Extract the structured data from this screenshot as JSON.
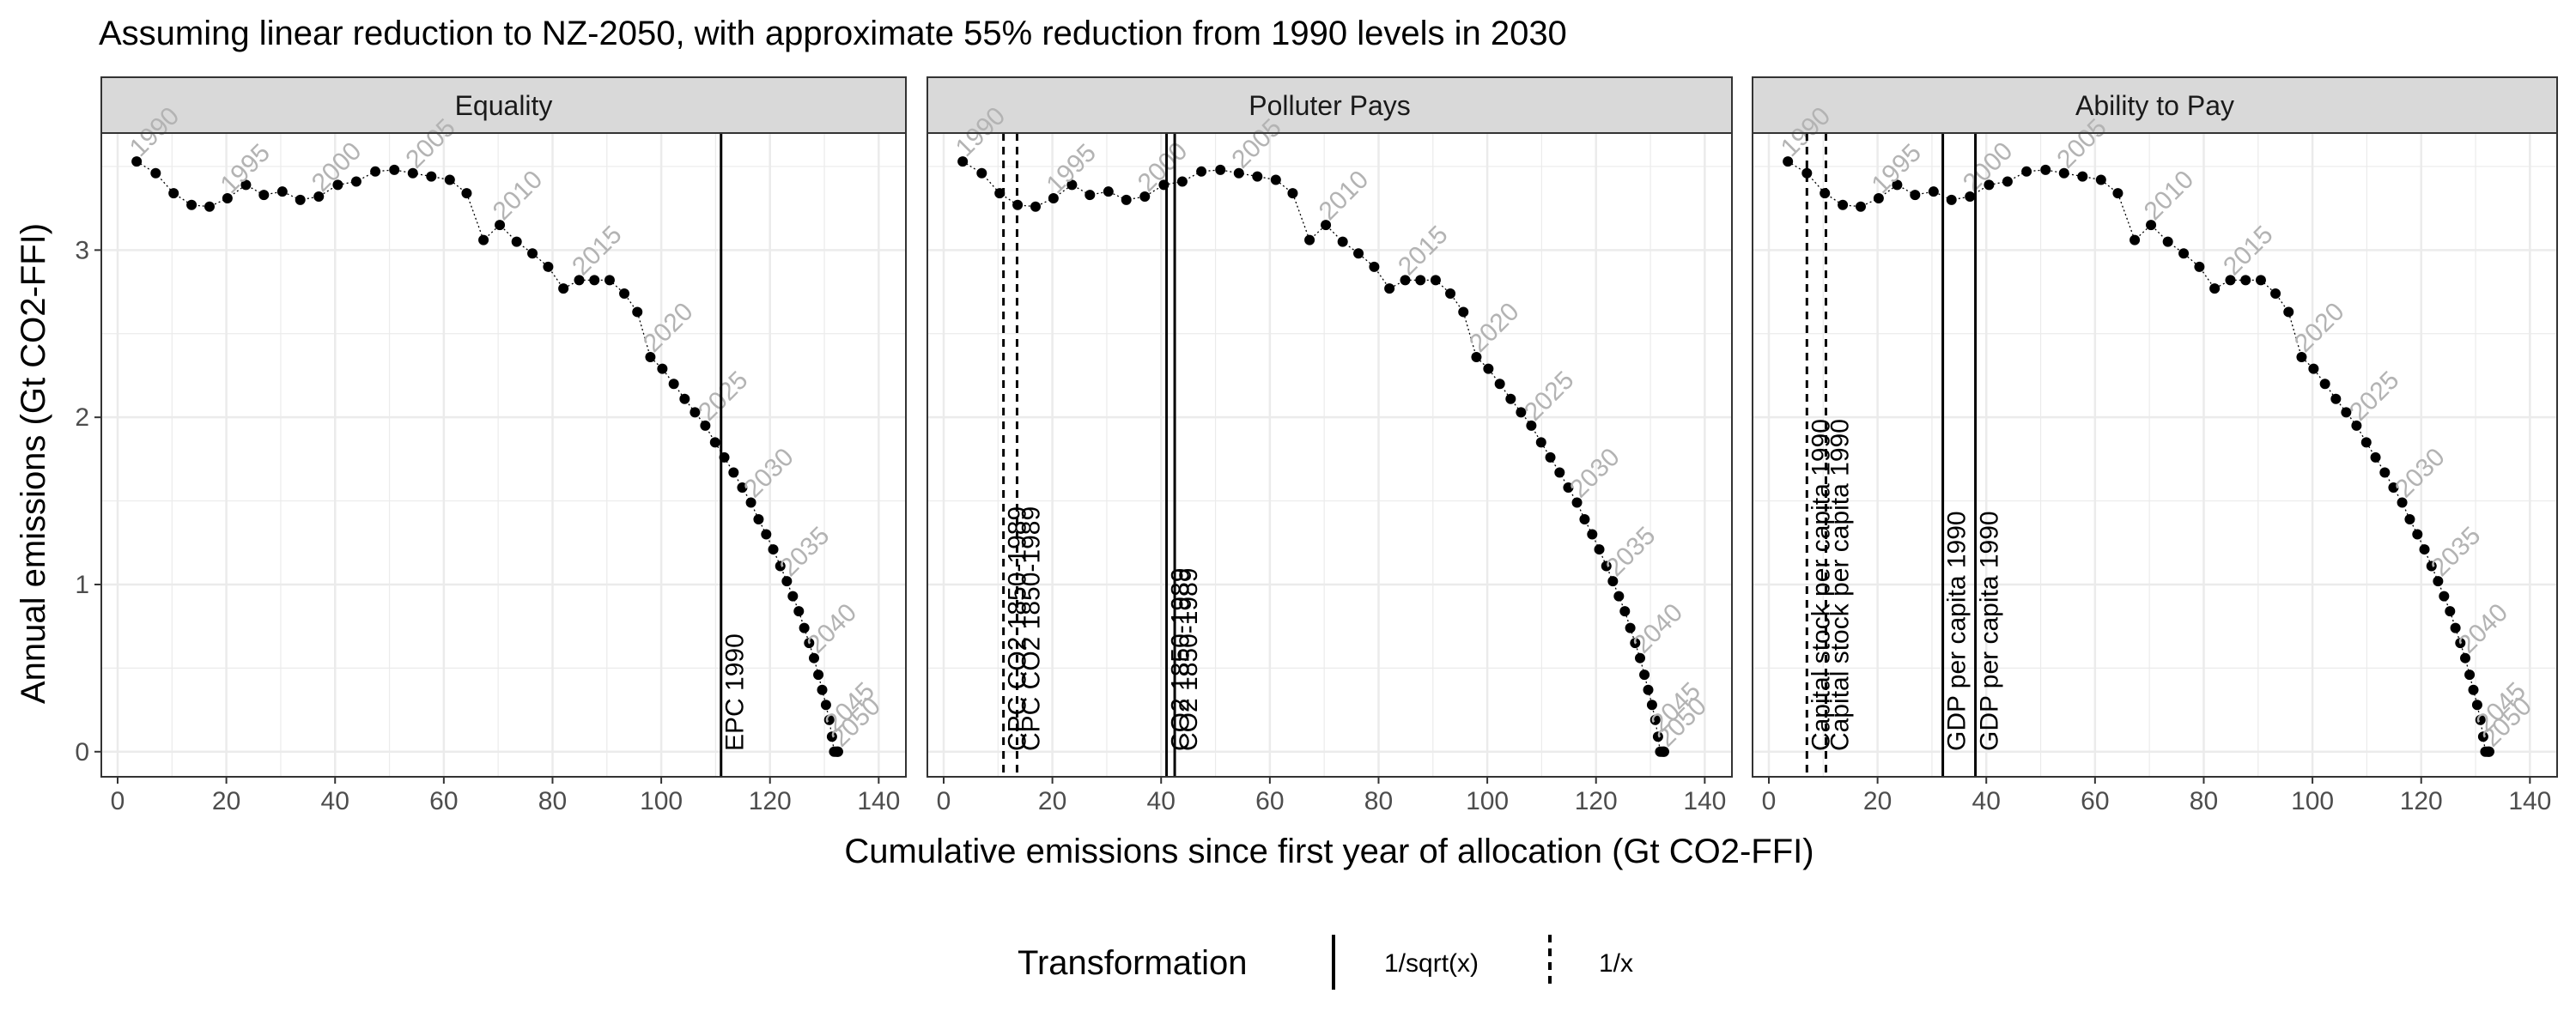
{
  "chart_data": {
    "type": "scatter",
    "title": "Assuming linear reduction to NZ-2050, with approximate 55% reduction from 1990 levels in 2030",
    "xlabel": "Cumulative emissions since first year of allocation (Gt CO2-FFI)",
    "ylabel": "Annual emissions (Gt CO2-FFI)",
    "xlim": [
      -3,
      145
    ],
    "ylim": [
      -0.15,
      3.7
    ],
    "x_ticks": [
      0,
      20,
      40,
      60,
      80,
      100,
      120,
      140
    ],
    "y_ticks": [
      0,
      1,
      2,
      3
    ],
    "grid": true,
    "facets": [
      "Equality",
      "Polluter Pays",
      "Ability to Pay"
    ],
    "year_labels": [
      "1990",
      "1995",
      "2000",
      "2005",
      "2010",
      "2015",
      "2020",
      "2025",
      "2030",
      "2035",
      "2040",
      "2045",
      "2050"
    ],
    "series": [
      {
        "name": "emissions",
        "years": [
          1990,
          1991,
          1992,
          1993,
          1994,
          1995,
          1996,
          1997,
          1998,
          1999,
          2000,
          2001,
          2002,
          2003,
          2004,
          2005,
          2006,
          2007,
          2008,
          2009,
          2010,
          2011,
          2012,
          2013,
          2014,
          2015,
          2016,
          2017,
          2018,
          2019,
          2020,
          2021,
          2022,
          2023,
          2024,
          2025,
          2026,
          2027,
          2028,
          2029,
          2030,
          2031,
          2032,
          2033,
          2034,
          2035,
          2036,
          2037,
          2038,
          2039,
          2040,
          2041,
          2042,
          2043,
          2044,
          2045,
          2046,
          2047,
          2048,
          2049,
          2050
        ],
        "x": [
          3.5,
          7,
          10.3,
          13.6,
          16.9,
          20.2,
          23.6,
          26.9,
          30.3,
          33.6,
          37,
          40.5,
          43.9,
          47.4,
          50.9,
          54.3,
          57.7,
          61.1,
          64.2,
          67.3,
          70.3,
          73.4,
          76.3,
          79.2,
          82,
          84.9,
          87.7,
          90.5,
          93.2,
          95.6,
          98,
          100.2,
          102.3,
          104.3,
          106.2,
          108.1,
          109.9,
          111.6,
          113.3,
          114.9,
          116.5,
          117.9,
          119.3,
          120.6,
          121.9,
          123.1,
          124.2,
          125.3,
          126.3,
          127.2,
          128.1,
          128.9,
          129.6,
          130.3,
          130.9,
          131.4,
          131.8,
          132.1,
          132.3,
          132.5,
          132.5
        ],
        "y": [
          3.53,
          3.46,
          3.34,
          3.27,
          3.26,
          3.31,
          3.39,
          3.33,
          3.35,
          3.3,
          3.32,
          3.39,
          3.41,
          3.47,
          3.48,
          3.46,
          3.44,
          3.42,
          3.34,
          3.06,
          3.15,
          3.05,
          2.98,
          2.9,
          2.77,
          2.82,
          2.82,
          2.82,
          2.74,
          2.63,
          2.36,
          2.29,
          2.2,
          2.11,
          2.03,
          1.95,
          1.85,
          1.76,
          1.67,
          1.58,
          1.49,
          1.39,
          1.3,
          1.21,
          1.11,
          1.02,
          0.93,
          0.84,
          0.74,
          0.65,
          0.56,
          0.46,
          0.37,
          0.28,
          0.19,
          0.09,
          0.0,
          0.0,
          0.0,
          0.0,
          0.0
        ]
      }
    ],
    "allocation_lines": [
      [
        {
          "facet": "Equality",
          "label": "EPC 1990",
          "x": 111,
          "transformation": "1/sqrt(x)"
        }
      ],
      [
        {
          "facet": "Polluter Pays",
          "label": "CPC CO2 1850-1989",
          "x": 11,
          "transformation": "1/x"
        },
        {
          "facet": "Polluter Pays",
          "label": "CPC CO2 1850-1989",
          "x": 13.5,
          "transformation": "1/x"
        },
        {
          "facet": "Polluter Pays",
          "label": "CO2 1850-1989",
          "x": 41,
          "transformation": "1/sqrt(x)"
        },
        {
          "facet": "Polluter Pays",
          "label": "CO2 1850-1989",
          "x": 42.5,
          "transformation": "1/sqrt(x)"
        }
      ],
      [
        {
          "facet": "Ability to Pay",
          "label": "Capital stock per capita 1990",
          "x": 7,
          "transformation": "1/x"
        },
        {
          "facet": "Ability to Pay",
          "label": "Capital stock per capita 1990",
          "x": 10.5,
          "transformation": "1/x"
        },
        {
          "facet": "Ability to Pay",
          "label": "GDP per capita 1990",
          "x": 32,
          "transformation": "1/sqrt(x)"
        },
        {
          "facet": "Ability to Pay",
          "label": "GDP per capita 1990",
          "x": 38,
          "transformation": "1/sqrt(x)"
        }
      ]
    ],
    "legend": {
      "title": "Transformation",
      "position": "bottom",
      "entries": [
        {
          "label": "1/sqrt(x)",
          "linetype": "solid"
        },
        {
          "label": "1/x",
          "linetype": "dashed"
        }
      ]
    },
    "colors": {
      "points": "#000000",
      "year_labels": "#b3b3b3",
      "strip_background": "#d9d9d9",
      "grid": "#ebebeb",
      "panel_border": "#333333"
    }
  }
}
